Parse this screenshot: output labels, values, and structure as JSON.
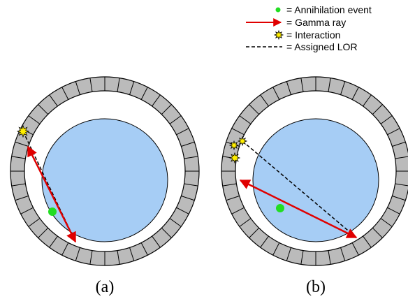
{
  "legend": {
    "items": [
      "= Annihilation event",
      "= Gamma ray",
      "= Interaction",
      "= Assigned LOR"
    ]
  },
  "panels": [
    {
      "caption": "(a)"
    },
    {
      "caption": "(b)"
    }
  ]
}
